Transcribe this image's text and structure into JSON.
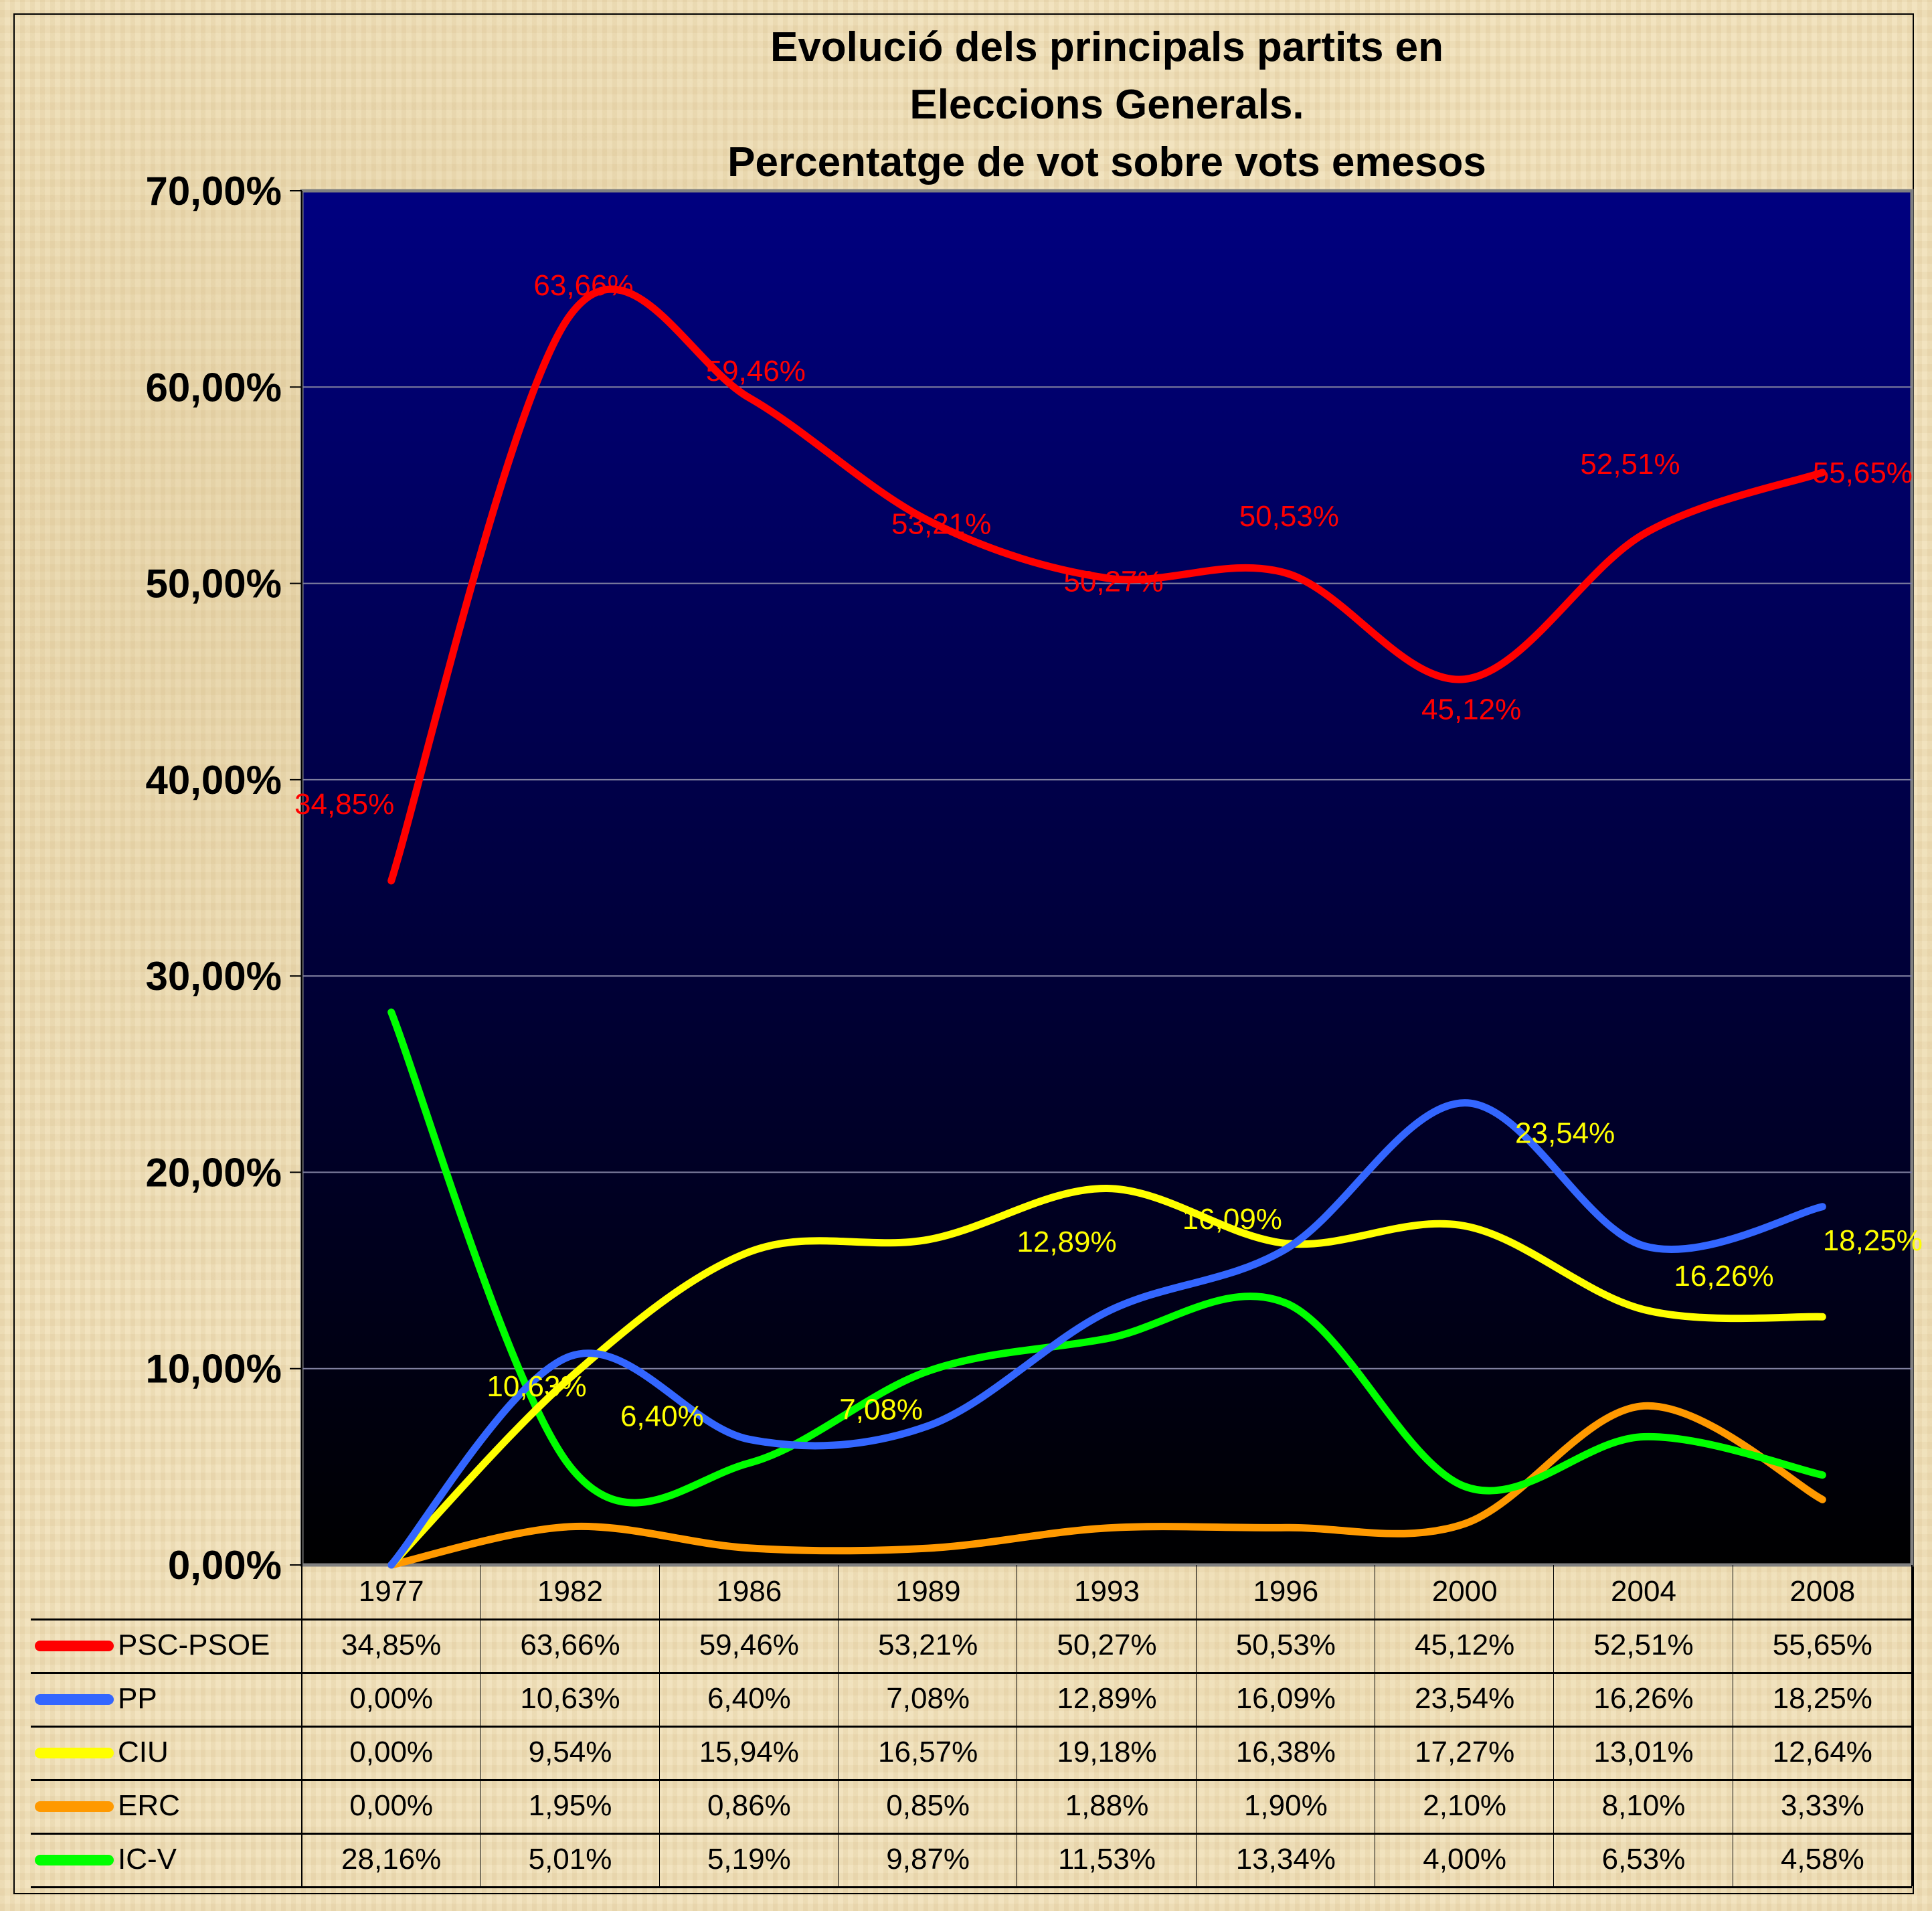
{
  "chart_data": {
    "type": "line",
    "title": [
      "Evolució dels principals partits en",
      "Eleccions Generals.",
      "Percentatge de vot sobre vots emesos"
    ],
    "categories": [
      "1977",
      "1982",
      "1986",
      "1989",
      "1993",
      "1996",
      "2000",
      "2004",
      "2008"
    ],
    "ylim": [
      0,
      70
    ],
    "yticks": [
      "0,00%",
      "10,00%",
      "20,00%",
      "30,00%",
      "40,00%",
      "50,00%",
      "60,00%",
      "70,00%"
    ],
    "grid": true,
    "smooth": true,
    "legend": "data table below chart",
    "plot_background": [
      "#000080",
      "#000000"
    ],
    "series": [
      {
        "name": "PSC-PSOE",
        "color": "#ff0000",
        "values": [
          34.85,
          63.66,
          59.46,
          53.21,
          50.27,
          50.53,
          45.12,
          52.51,
          55.65
        ],
        "labels": [
          "34,85%",
          "63,66%",
          "59,46%",
          "53,21%",
          "50,27%",
          "50,53%",
          "45,12%",
          "52,51%",
          "55,65%"
        ]
      },
      {
        "name": "PP",
        "color": "#3366ff",
        "values": [
          0,
          10.63,
          6.4,
          7.08,
          12.89,
          16.09,
          23.54,
          16.26,
          18.25
        ],
        "labels": [
          "0,00%",
          "10,63%",
          "6,40%",
          "7,08%",
          "12,89%",
          "16,09%",
          "23,54%",
          "16,26%",
          "18,25%"
        ]
      },
      {
        "name": "CIU",
        "color": "#ffff00",
        "values": [
          0,
          9.54,
          15.94,
          16.57,
          19.18,
          16.38,
          17.27,
          13.01,
          12.64
        ],
        "labels": [
          "0,00%",
          "9,54%",
          "15,94%",
          "16,57%",
          "19,18%",
          "16,38%",
          "17,27%",
          "13,01%",
          "12,64%"
        ]
      },
      {
        "name": "ERC",
        "color": "#ff9900",
        "values": [
          0,
          1.95,
          0.86,
          0.85,
          1.88,
          1.9,
          2.1,
          8.1,
          3.33
        ],
        "labels": [
          "0,00%",
          "1,95%",
          "0,86%",
          "0,85%",
          "1,88%",
          "1,90%",
          "2,10%",
          "8,10%",
          "3,33%"
        ]
      },
      {
        "name": "IC-V",
        "color": "#00ff00",
        "values": [
          28.16,
          5.01,
          5.19,
          9.87,
          11.53,
          13.34,
          4.0,
          6.53,
          4.58
        ],
        "labels": [
          "28,16%",
          "5,01%",
          "5,19%",
          "9,87%",
          "11,53%",
          "13,34%",
          "4,00%",
          "6,53%",
          "4,58%"
        ]
      }
    ],
    "data_labels": {
      "PSC-PSOE": {
        "color": "#ff0000",
        "points": [
          0,
          1,
          2,
          3,
          4,
          5,
          6,
          7,
          8
        ]
      },
      "PP": {
        "color": "#ffff00",
        "points": [
          1,
          2,
          3,
          4,
          5,
          6,
          7,
          8
        ]
      }
    }
  }
}
